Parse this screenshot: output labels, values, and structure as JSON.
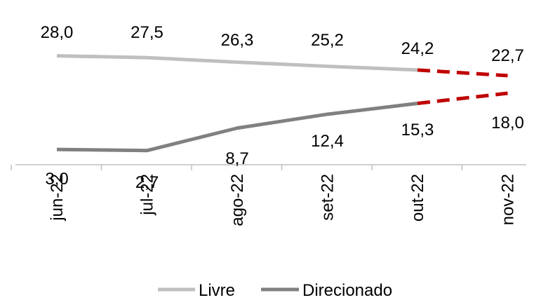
{
  "chart_data": {
    "type": "line",
    "categories": [
      "jun-22",
      "jul-22",
      "ago-22",
      "set-22",
      "out-22",
      "nov-22"
    ],
    "series": [
      {
        "name": "Livre",
        "values": [
          28.0,
          27.5,
          26.3,
          25.2,
          24.2,
          22.7
        ],
        "labels": [
          "28,0",
          "27,5",
          "26,3",
          "25,2",
          "24,2",
          "22,7"
        ],
        "color": "#bfbfbf",
        "projected_from_index": 4,
        "projection_color": "#c00000"
      },
      {
        "name": "Direcionado",
        "values": [
          3.0,
          2.7,
          8.7,
          12.4,
          15.3,
          18.0
        ],
        "labels": [
          "3,0",
          "2,7",
          "8,7",
          "12,4",
          "15,3",
          "18,0"
        ],
        "color": "#808080",
        "projected_from_index": 4,
        "projection_color": "#c00000"
      }
    ],
    "legend_position": "bottom",
    "grid": false
  }
}
